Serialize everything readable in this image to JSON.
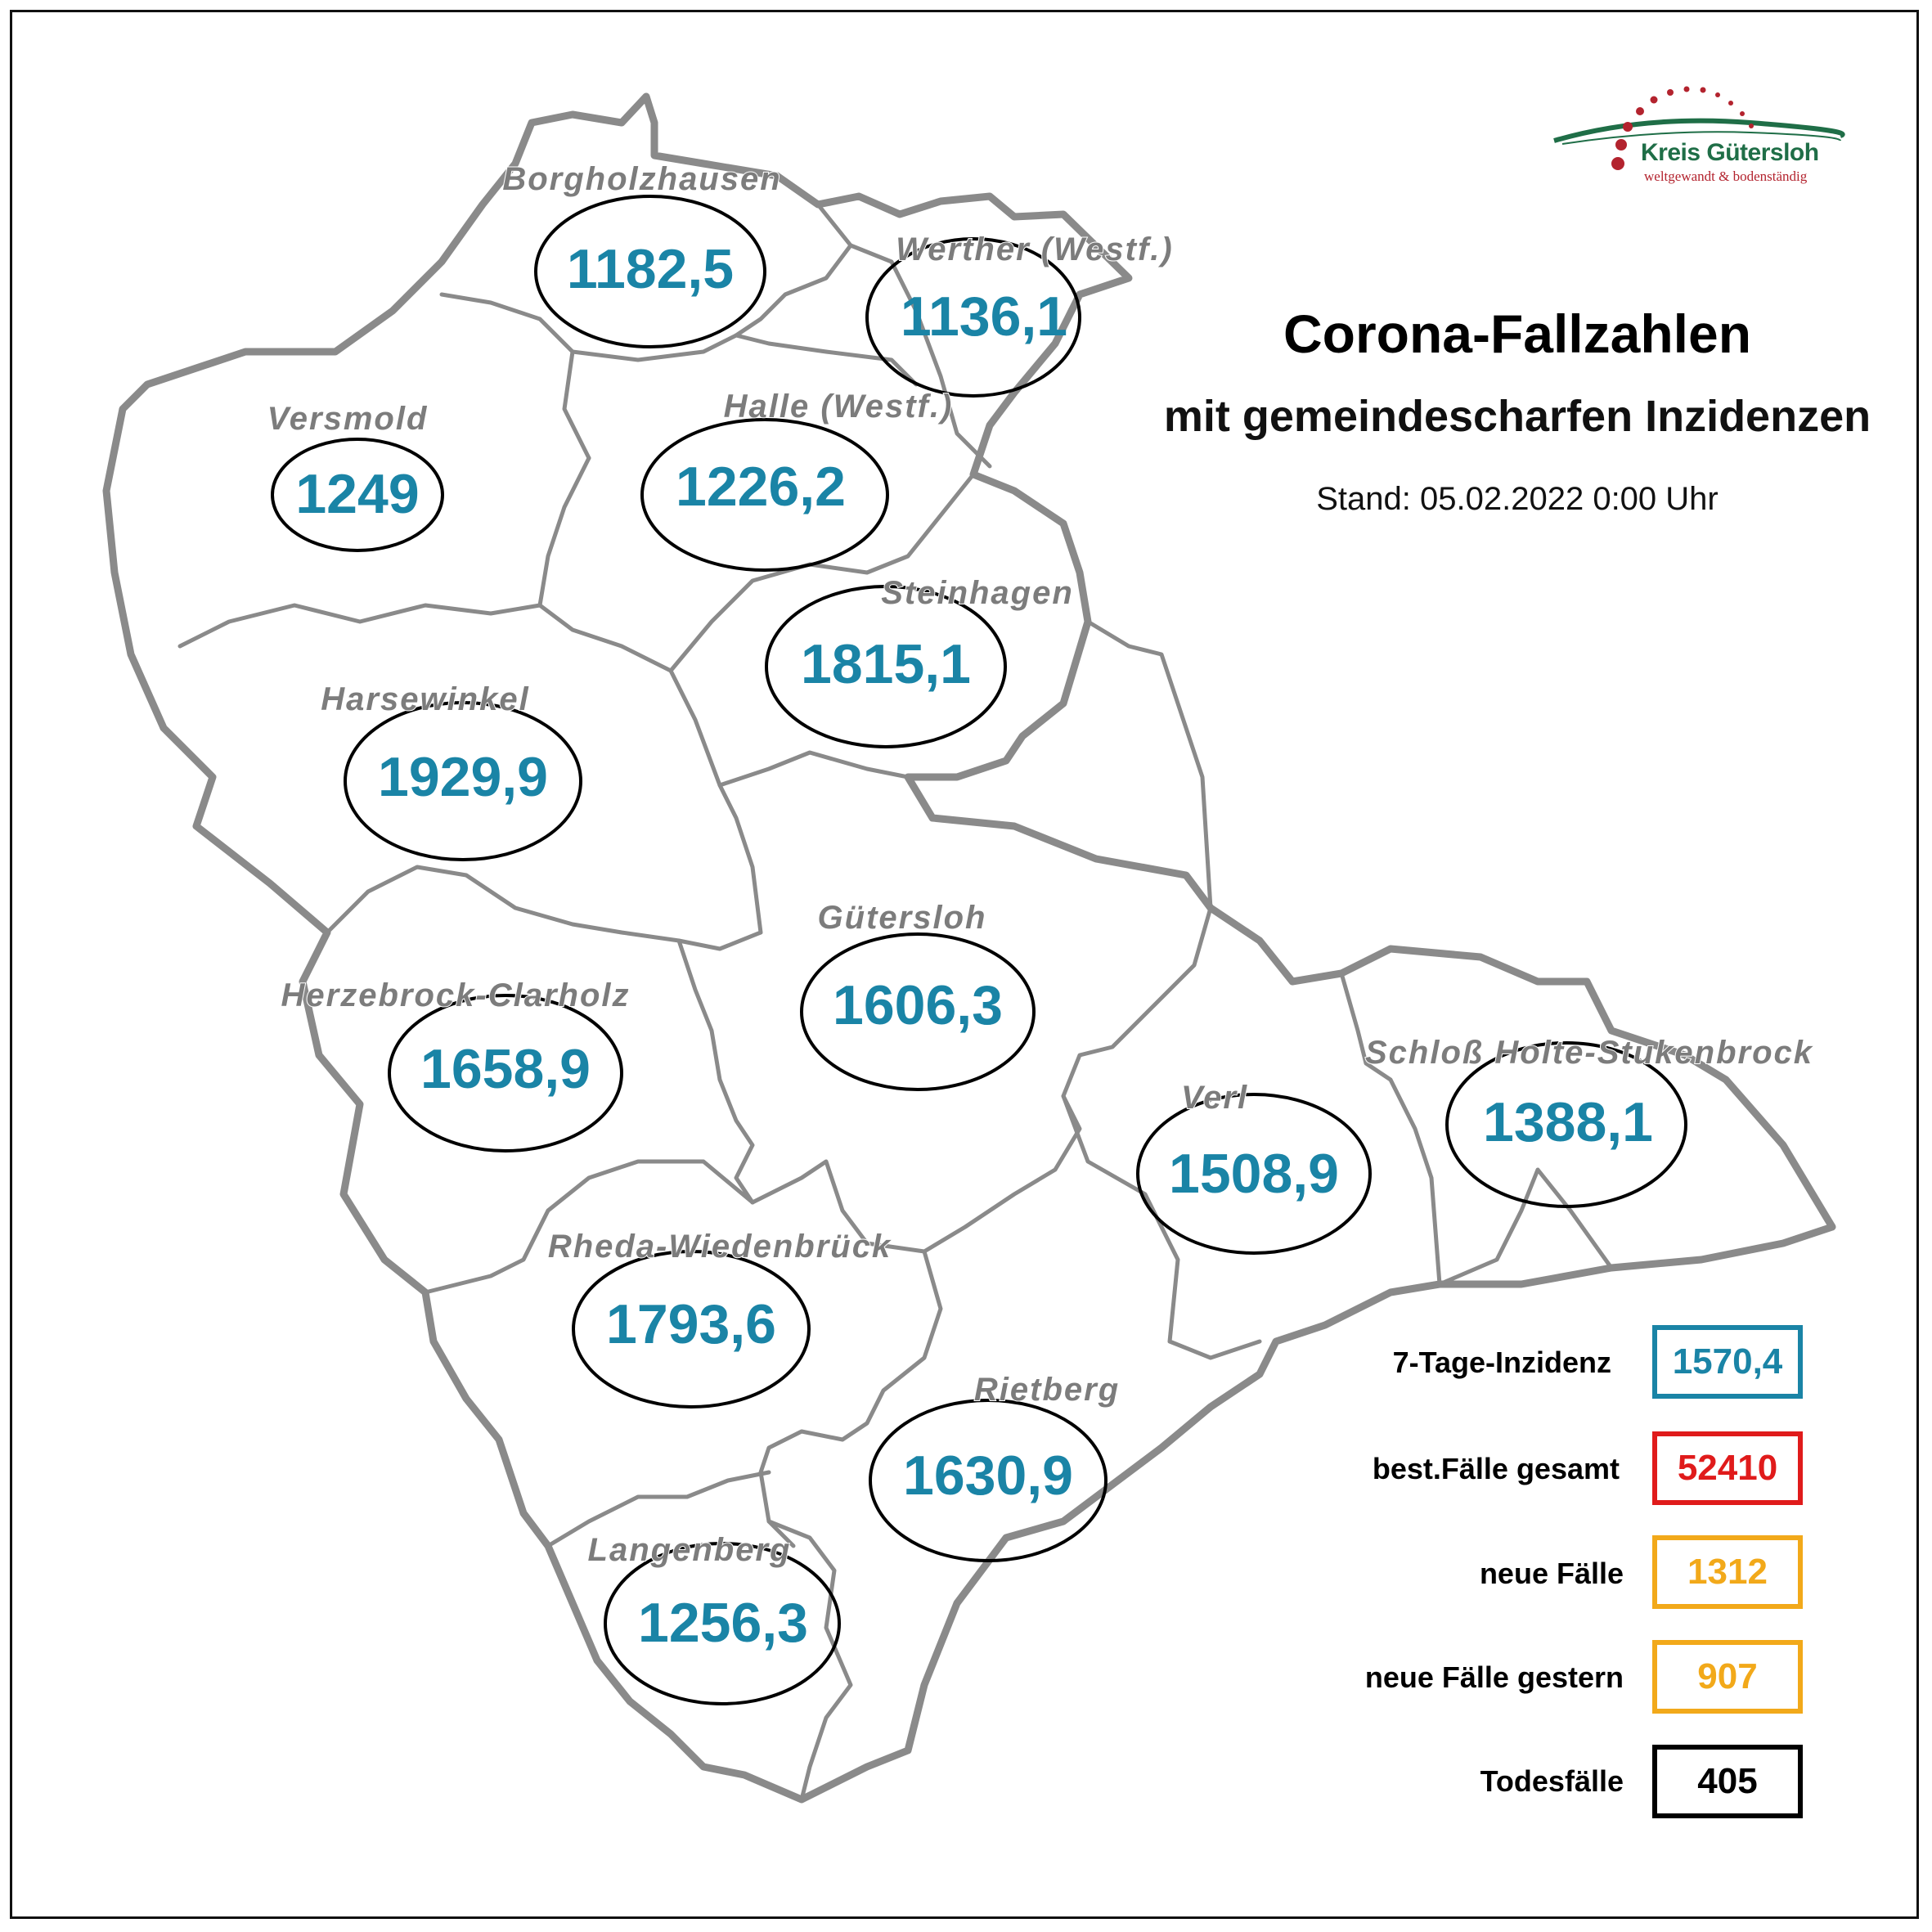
{
  "title": "Corona-Fallzahlen",
  "subtitle": "mit gemeindescharfen Inzidenzen",
  "stand": "Stand: 05.02.2022 0:00 Uhr",
  "logo": {
    "name": "Kreis Gütersloh",
    "slogan": "weltgewandt & bodenständig"
  },
  "colors": {
    "incidence": "#1a84a6",
    "district_label": "#7c7c7c",
    "border": "#8a8a8a",
    "total_cases": "#e01b1b",
    "new_cases": "#f2a91a",
    "deaths": "#000000",
    "logo_green": "#1f6e47",
    "logo_red": "#b3232e"
  },
  "municipalities": [
    {
      "name": "Borgholzhausen",
      "incidence": "1182,5"
    },
    {
      "name": "Werther (Westf.)",
      "incidence": "1136,1"
    },
    {
      "name": "Versmold",
      "incidence": "1249"
    },
    {
      "name": "Halle (Westf.)",
      "incidence": "1226,2"
    },
    {
      "name": "Steinhagen",
      "incidence": "1815,1"
    },
    {
      "name": "Harsewinkel",
      "incidence": "1929,9"
    },
    {
      "name": "Gütersloh",
      "incidence": "1606,3"
    },
    {
      "name": "Herzebrock-Clarholz",
      "incidence": "1658,9"
    },
    {
      "name": "Verl",
      "incidence": "1508,9"
    },
    {
      "name": "Schloß Holte-Stukenbrock",
      "incidence": "1388,1"
    },
    {
      "name": "Rheda-Wiedenbrück",
      "incidence": "1793,6"
    },
    {
      "name": "Rietberg",
      "incidence": "1630,9"
    },
    {
      "name": "Langenberg",
      "incidence": "1256,3"
    }
  ],
  "legend": [
    {
      "label": "7-Tage-Inzidenz",
      "value": "1570,4",
      "color": "#1a84a6"
    },
    {
      "label": "best.Fälle gesamt",
      "value": "52410",
      "color": "#e01b1b"
    },
    {
      "label": "neue Fälle",
      "value": "1312",
      "color": "#f2a91a"
    },
    {
      "label": "neue Fälle gestern",
      "value": "907",
      "color": "#f2a91a"
    },
    {
      "label": "Todesfälle",
      "value": "405",
      "color": "#000000"
    }
  ]
}
